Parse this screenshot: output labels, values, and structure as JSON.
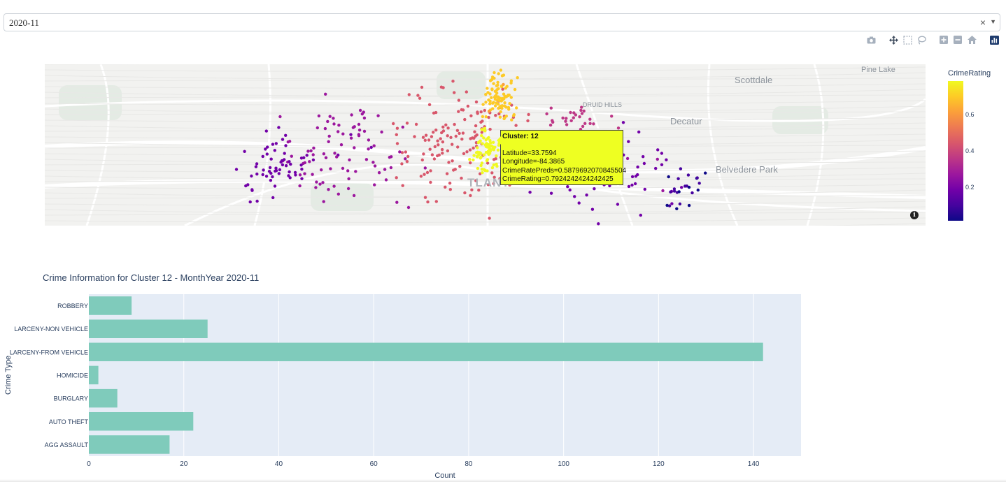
{
  "selector": {
    "value": "2020-11",
    "clear_glyph": "×",
    "caret_glyph": "▼"
  },
  "modebar": [
    "camera-icon",
    "pan-icon",
    "box-select-icon",
    "lasso-icon",
    "zoom-in-icon",
    "zoom-out-icon",
    "home-icon",
    "plotly-logo-icon"
  ],
  "map": {
    "labels": [
      "Scottdale",
      "Pine Lake",
      "DRUID HILLS",
      "Decatur",
      "Belvedere Park",
      "TLANT"
    ],
    "tooltip": {
      "title": "Cluster: 12",
      "lines": [
        "Latitude=33.7594",
        "Longitude=-84.3865",
        "CrimeRatePreds=0.5879692070845504",
        "CrimeRating=0.7924242424242425"
      ]
    },
    "info_glyph": "i"
  },
  "colorbar": {
    "title": "CrimeRating",
    "ticks": [
      0.2,
      0.4,
      0.6
    ],
    "range": [
      0.02,
      0.8
    ]
  },
  "chart_data": {
    "type": "bar",
    "orientation": "horizontal",
    "title": "Crime Information for Cluster 12 - MonthYear 2020-11",
    "xlabel": "Count",
    "ylabel": "Crime Type",
    "categories": [
      "AGG ASSAULT",
      "AUTO THEFT",
      "BURGLARY",
      "HOMICIDE",
      "LARCENY-FROM VEHICLE",
      "LARCENY-NON VEHICLE",
      "ROBBERY"
    ],
    "values": [
      17,
      22,
      6,
      2,
      142,
      25,
      9
    ],
    "xlim": [
      0,
      150
    ],
    "xticks": [
      0,
      20,
      40,
      60,
      80,
      100,
      120,
      140
    ],
    "bar_color": "#7fcbbb",
    "plot_bg": "#e5ecf6",
    "grid": true
  }
}
